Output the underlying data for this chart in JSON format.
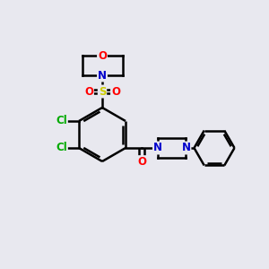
{
  "background_color": "#e8e8ef",
  "line_color": "#000000",
  "bond_width": 1.8,
  "atom_colors": {
    "O": "#ff0000",
    "N": "#0000cc",
    "S": "#cccc00",
    "Cl": "#00aa00",
    "C": "#000000"
  },
  "font_size": 8.5,
  "figsize": [
    3.0,
    3.0
  ],
  "dpi": 100
}
